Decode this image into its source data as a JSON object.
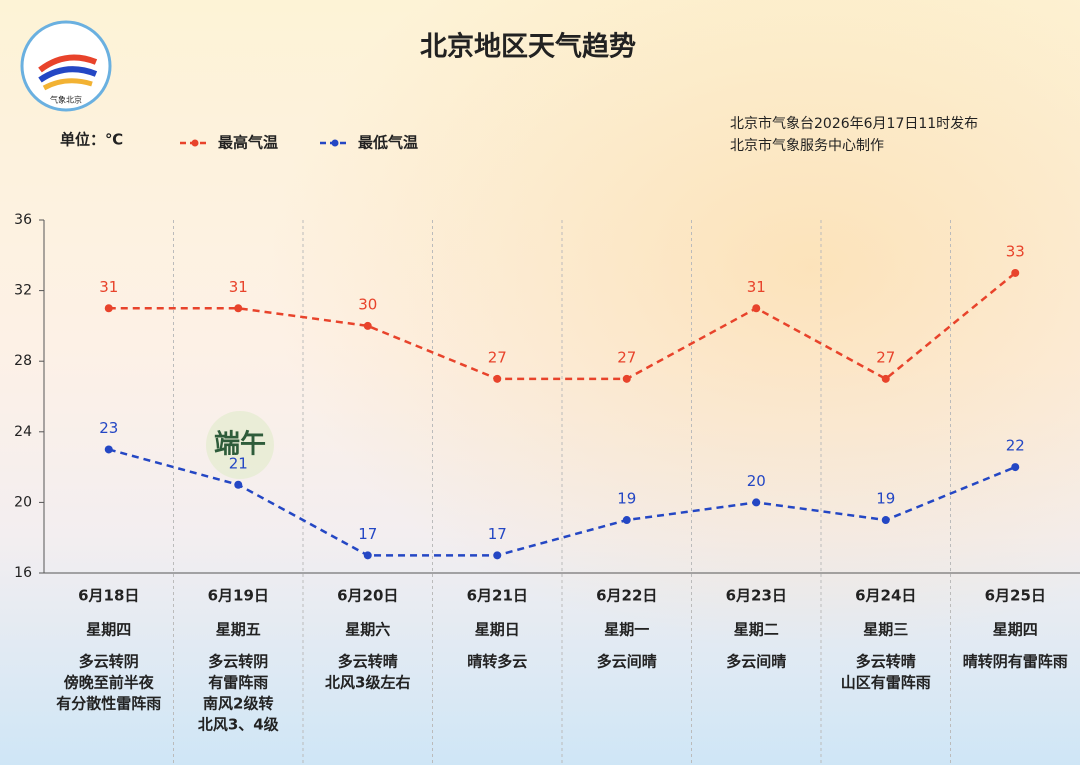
{
  "chart_data": {
    "type": "line",
    "title": "北京地区天气趋势",
    "unit_label": "单位：℃",
    "logo_text": "气象北京",
    "badge": "端午",
    "source": [
      "北京市气象台2026年6月17日11时发布",
      "北京市气象服务中心制作"
    ],
    "categories": [
      "6月18日",
      "6月19日",
      "6月20日",
      "6月21日",
      "6月22日",
      "6月23日",
      "6月24日",
      "6月25日"
    ],
    "weekdays": [
      "星期四",
      "星期五",
      "星期六",
      "星期日",
      "星期一",
      "星期二",
      "星期三",
      "星期四"
    ],
    "weather": [
      [
        "多云转阴",
        "傍晚至前半夜",
        "有分散性雷阵雨"
      ],
      [
        "多云转阴",
        "有雷阵雨",
        "南风2级转",
        "北风3、4级"
      ],
      [
        "多云转晴",
        "北风3级左右"
      ],
      [
        "晴转多云"
      ],
      [
        "多云间晴"
      ],
      [
        "多云间晴"
      ],
      [
        "多云转晴",
        "山区有雷阵雨"
      ],
      [
        "晴转阴有雷阵雨"
      ]
    ],
    "series": [
      {
        "name": "最高气温",
        "color": "#e8432b",
        "values": [
          31,
          31,
          30,
          27,
          27,
          31,
          27,
          33
        ]
      },
      {
        "name": "最低气温",
        "color": "#2447c4",
        "values": [
          23,
          21,
          17,
          17,
          19,
          20,
          19,
          22
        ]
      }
    ],
    "ylim": [
      16,
      36
    ],
    "yticks": [
      16,
      20,
      24,
      28,
      32,
      36
    ],
    "grid": true
  }
}
